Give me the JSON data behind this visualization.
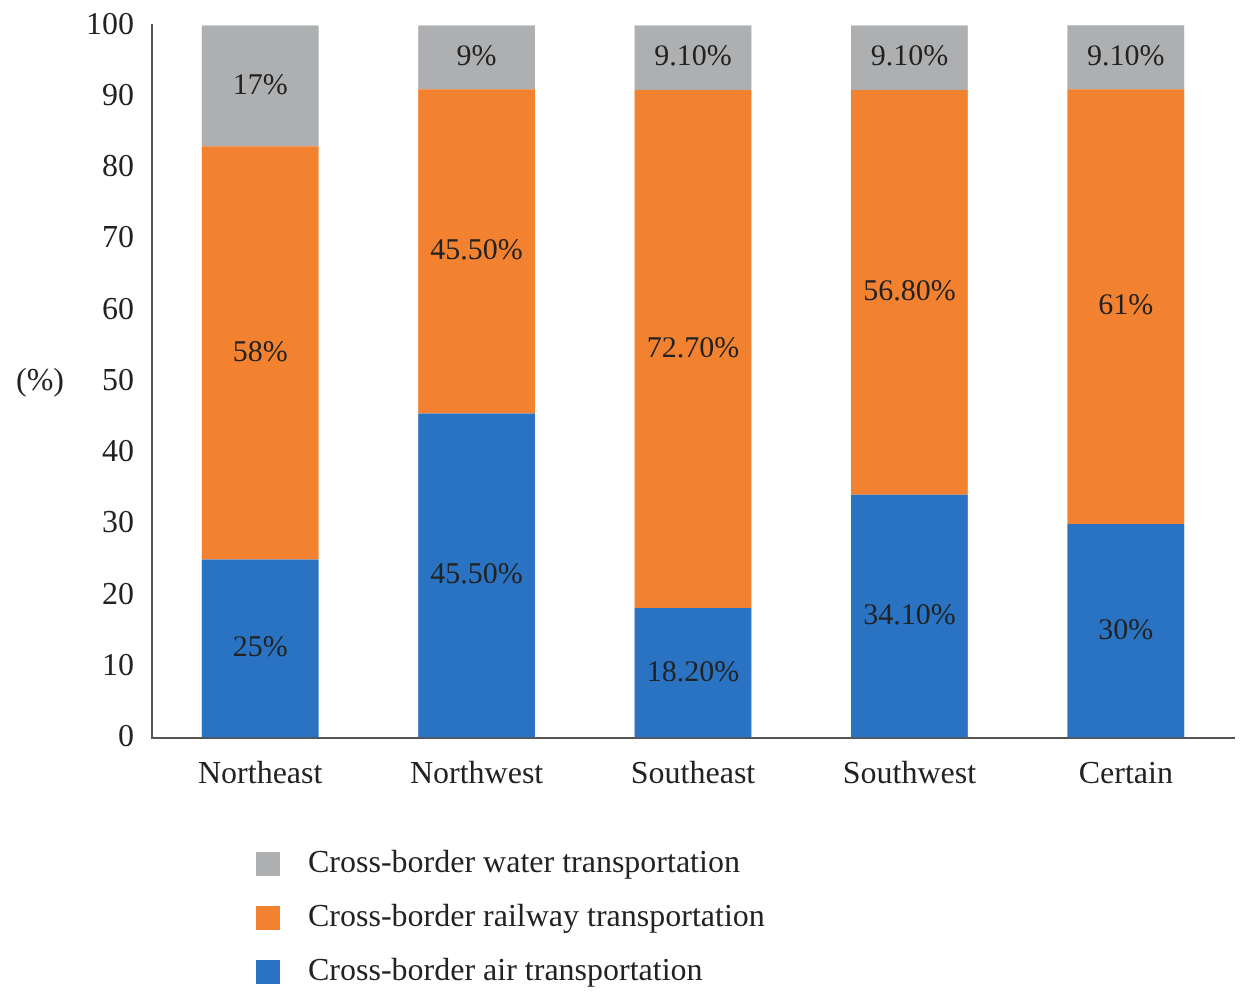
{
  "chart_data": {
    "type": "bar",
    "stacked": true,
    "ylabel": "(%)",
    "categories": [
      "Northeast",
      "Northwest",
      "Southeast",
      "Southwest",
      "Certain"
    ],
    "series": [
      {
        "name": "Cross-border air transportation",
        "color": "#2a73c2",
        "values": [
          25,
          45.5,
          18.2,
          34.1,
          30
        ],
        "value_labels": [
          "25%",
          "45.50%",
          "18.20%",
          "34.10%",
          "30%"
        ]
      },
      {
        "name": "Cross-border railway transportation",
        "color": "#f28130",
        "values": [
          58,
          45.5,
          72.7,
          56.8,
          61
        ],
        "value_labels": [
          "58%",
          "45.50%",
          "72.70%",
          "56.80%",
          "61%"
        ]
      },
      {
        "name": "Cross-border water transportation",
        "color": "#aeafb1",
        "values": [
          17,
          9,
          9.1,
          9.1,
          9.1
        ],
        "value_labels": [
          "17%",
          "9%",
          "9.10%",
          "9.10%",
          "9.10%"
        ]
      }
    ],
    "ylim": [
      0,
      100
    ],
    "yticks": [
      0,
      10,
      20,
      30,
      40,
      50,
      60,
      70,
      80,
      90,
      100
    ],
    "grid": false,
    "legend": "bottom"
  }
}
